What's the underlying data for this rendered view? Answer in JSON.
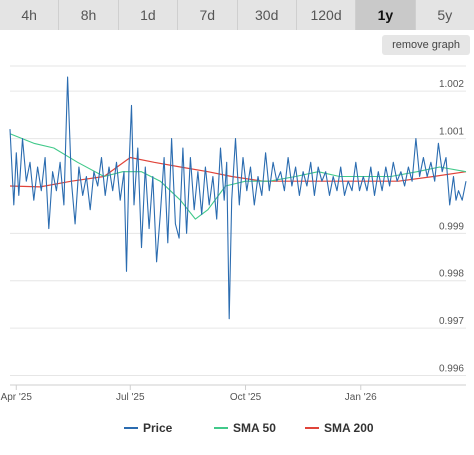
{
  "range_tabs": [
    {
      "label": "4h",
      "active": false
    },
    {
      "label": "8h",
      "active": false
    },
    {
      "label": "1d",
      "active": false
    },
    {
      "label": "7d",
      "active": false
    },
    {
      "label": "30d",
      "active": false
    },
    {
      "label": "120d",
      "active": false
    },
    {
      "label": "1y",
      "active": true
    },
    {
      "label": "5y",
      "active": false
    }
  ],
  "remove_graph_label": "remove graph",
  "chart_data": {
    "type": "line",
    "x_range": [
      "2025-03-27",
      "2026-03-26"
    ],
    "ylim": [
      0.9958,
      1.0027
    ],
    "y_ticks": [
      {
        "value": 1.002,
        "label": "1.002"
      },
      {
        "value": 1.001,
        "label": "1.001"
      },
      {
        "value": 0.999,
        "label": "0.999"
      },
      {
        "value": 0.998,
        "label": "0.998"
      },
      {
        "value": 0.997,
        "label": "0.997"
      },
      {
        "value": 0.996,
        "label": "0.996"
      }
    ],
    "x_ticks": [
      {
        "date": "2025-04-01",
        "label": "Apr '25"
      },
      {
        "date": "2025-07-01",
        "label": "Jul '25"
      },
      {
        "date": "2025-10-01",
        "label": "Oct '25"
      },
      {
        "date": "2026-01-01",
        "label": "Jan '26"
      }
    ],
    "grid": true,
    "legend_position": "bottom",
    "colors": {
      "price": "#2b6cb0",
      "sma50": "#41c98a",
      "sma200": "#e0443a"
    },
    "series": [
      {
        "name": "Price",
        "points": [
          [
            "2025-03-27",
            1.0012
          ],
          [
            "2025-03-30",
            0.9996
          ],
          [
            "2025-04-01",
            1.0007
          ],
          [
            "2025-04-03",
            0.9998
          ],
          [
            "2025-04-06",
            1.001
          ],
          [
            "2025-04-09",
            1.0001
          ],
          [
            "2025-04-12",
            1.0005
          ],
          [
            "2025-04-15",
            0.9997
          ],
          [
            "2025-04-18",
            1.0004
          ],
          [
            "2025-04-21",
            0.9999
          ],
          [
            "2025-04-24",
            1.0006
          ],
          [
            "2025-04-27",
            0.9991
          ],
          [
            "2025-04-30",
            1.0003
          ],
          [
            "2025-05-03",
            0.9999
          ],
          [
            "2025-05-06",
            1.0005
          ],
          [
            "2025-05-09",
            0.9996
          ],
          [
            "2025-05-12",
            1.0023
          ],
          [
            "2025-05-15",
            1.0001
          ],
          [
            "2025-05-18",
            0.9992
          ],
          [
            "2025-05-21",
            1.0004
          ],
          [
            "2025-05-24",
            0.9998
          ],
          [
            "2025-05-27",
            1.0002
          ],
          [
            "2025-05-30",
            0.9995
          ],
          [
            "2025-06-02",
            1.0003
          ],
          [
            "2025-06-05",
            1.0
          ],
          [
            "2025-06-08",
            1.0006
          ],
          [
            "2025-06-11",
            0.9998
          ],
          [
            "2025-06-14",
            1.0004
          ],
          [
            "2025-06-17",
            0.9999
          ],
          [
            "2025-06-20",
            1.0005
          ],
          [
            "2025-06-23",
            0.9997
          ],
          [
            "2025-06-26",
            1.0003
          ],
          [
            "2025-06-28",
            0.9982
          ],
          [
            "2025-06-30",
            1.0004
          ],
          [
            "2025-07-02",
            1.0017
          ],
          [
            "2025-07-04",
            0.9996
          ],
          [
            "2025-07-07",
            1.0008
          ],
          [
            "2025-07-10",
            0.9987
          ],
          [
            "2025-07-13",
            1.0004
          ],
          [
            "2025-07-16",
            0.9991
          ],
          [
            "2025-07-19",
            1.0002
          ],
          [
            "2025-07-22",
            0.9984
          ],
          [
            "2025-07-25",
            0.9994
          ],
          [
            "2025-07-28",
            1.0006
          ],
          [
            "2025-07-31",
            0.9988
          ],
          [
            "2025-08-03",
            1.001
          ],
          [
            "2025-08-06",
            0.9992
          ],
          [
            "2025-08-09",
            0.9989
          ],
          [
            "2025-08-12",
            1.0008
          ],
          [
            "2025-08-15",
            0.999
          ],
          [
            "2025-08-18",
            1.0006
          ],
          [
            "2025-08-21",
            0.9995
          ],
          [
            "2025-08-24",
            1.0003
          ],
          [
            "2025-08-27",
            0.9994
          ],
          [
            "2025-08-30",
            1.0004
          ],
          [
            "2025-09-02",
            0.9996
          ],
          [
            "2025-09-05",
            1.0002
          ],
          [
            "2025-09-08",
            0.9993
          ],
          [
            "2025-09-11",
            1.0008
          ],
          [
            "2025-09-14",
            0.9997
          ],
          [
            "2025-09-16",
            1.0005
          ],
          [
            "2025-09-18",
            0.9972
          ],
          [
            "2025-09-20",
            0.9997
          ],
          [
            "2025-09-23",
            1.001
          ],
          [
            "2025-09-26",
            0.9996
          ],
          [
            "2025-09-29",
            1.0006
          ],
          [
            "2025-10-02",
            0.9999
          ],
          [
            "2025-10-05",
            1.0004
          ],
          [
            "2025-10-08",
            0.9996
          ],
          [
            "2025-10-11",
            1.0002
          ],
          [
            "2025-10-14",
            0.9998
          ],
          [
            "2025-10-17",
            1.0007
          ],
          [
            "2025-10-20",
            0.9999
          ],
          [
            "2025-10-23",
            1.0005
          ],
          [
            "2025-10-26",
            1.0001
          ],
          [
            "2025-10-29",
            1.0003
          ],
          [
            "2025-11-01",
            0.9999
          ],
          [
            "2025-11-04",
            1.0006
          ],
          [
            "2025-11-07",
            1.0
          ],
          [
            "2025-11-10",
            1.0004
          ],
          [
            "2025-11-13",
            0.9998
          ],
          [
            "2025-11-16",
            1.0003
          ],
          [
            "2025-11-19",
            1.0
          ],
          [
            "2025-11-22",
            1.0005
          ],
          [
            "2025-11-25",
            0.9998
          ],
          [
            "2025-11-28",
            1.0004
          ],
          [
            "2025-12-01",
            1.0001
          ],
          [
            "2025-12-04",
            1.0003
          ],
          [
            "2025-12-07",
            0.9998
          ],
          [
            "2025-12-10",
            1.0002
          ],
          [
            "2025-12-13",
            0.9999
          ],
          [
            "2025-12-16",
            1.0004
          ],
          [
            "2025-12-19",
            0.9998
          ],
          [
            "2025-12-22",
            1.0001
          ],
          [
            "2025-12-25",
            0.9999
          ],
          [
            "2025-12-28",
            1.0005
          ],
          [
            "2025-12-31",
            0.9999
          ],
          [
            "2026-01-03",
            1.0002
          ],
          [
            "2026-01-06",
            0.9999
          ],
          [
            "2026-01-09",
            1.0004
          ],
          [
            "2026-01-12",
            0.9998
          ],
          [
            "2026-01-15",
            1.0003
          ],
          [
            "2026-01-18",
            0.9999
          ],
          [
            "2026-01-21",
            1.0004
          ],
          [
            "2026-01-24",
            1.0
          ],
          [
            "2026-01-27",
            1.0005
          ],
          [
            "2026-01-30",
            1.0001
          ],
          [
            "2026-02-02",
            1.0003
          ],
          [
            "2026-02-05",
            1.0
          ],
          [
            "2026-02-08",
            1.0004
          ],
          [
            "2026-02-11",
            1.0001
          ],
          [
            "2026-02-14",
            1.001
          ],
          [
            "2026-02-17",
            1.0002
          ],
          [
            "2026-02-20",
            1.0006
          ],
          [
            "2026-02-23",
            1.0002
          ],
          [
            "2026-02-26",
            1.0005
          ],
          [
            "2026-03-01",
            1.0001
          ],
          [
            "2026-03-04",
            1.0009
          ],
          [
            "2026-03-07",
            1.0003
          ],
          [
            "2026-03-10",
            1.0006
          ],
          [
            "2026-03-13",
            0.9996
          ],
          [
            "2026-03-16",
            1.0002
          ],
          [
            "2026-03-18",
            0.9997
          ],
          [
            "2026-03-20",
            0.9999
          ],
          [
            "2026-03-23",
            0.9997
          ],
          [
            "2026-03-26",
            1.0001
          ]
        ]
      },
      {
        "name": "SMA 50",
        "points": [
          [
            "2025-03-27",
            1.0011
          ],
          [
            "2025-04-15",
            1.0009
          ],
          [
            "2025-05-01",
            1.0008
          ],
          [
            "2025-05-20",
            1.0005
          ],
          [
            "2025-06-10",
            1.0002
          ],
          [
            "2025-06-25",
            1.0003
          ],
          [
            "2025-07-10",
            1.0003
          ],
          [
            "2025-07-25",
            1.0001
          ],
          [
            "2025-08-10",
            0.9997
          ],
          [
            "2025-08-22",
            0.9993
          ],
          [
            "2025-09-01",
            0.9995
          ],
          [
            "2025-09-15",
            1.0
          ],
          [
            "2025-10-01",
            1.0001
          ],
          [
            "2025-10-20",
            1.0001
          ],
          [
            "2025-11-10",
            1.0002
          ],
          [
            "2025-11-28",
            1.0003
          ],
          [
            "2025-12-15",
            1.0002
          ],
          [
            "2026-01-05",
            1.0002
          ],
          [
            "2026-01-25",
            1.0002
          ],
          [
            "2026-02-15",
            1.0003
          ],
          [
            "2026-03-05",
            1.0004
          ],
          [
            "2026-03-26",
            1.0003
          ]
        ]
      },
      {
        "name": "SMA 200",
        "points": [
          [
            "2025-03-27",
            1.0
          ],
          [
            "2025-04-20",
            0.99998
          ],
          [
            "2025-05-15",
            1.0001
          ],
          [
            "2025-06-10",
            1.0002
          ],
          [
            "2025-07-01",
            1.0006
          ],
          [
            "2025-07-20",
            1.0005
          ],
          [
            "2025-08-10",
            1.0004
          ],
          [
            "2025-09-01",
            1.0003
          ],
          [
            "2025-09-20",
            1.0002
          ],
          [
            "2025-10-15",
            1.0001
          ],
          [
            "2025-11-20",
            1.0001
          ],
          [
            "2025-12-31",
            1.0001
          ],
          [
            "2026-01-31",
            1.0001
          ],
          [
            "2026-02-28",
            1.0002
          ],
          [
            "2026-03-26",
            1.0003
          ]
        ]
      }
    ],
    "legend": [
      {
        "label": "Price",
        "color": "#2b6cb0"
      },
      {
        "label": "SMA 50",
        "color": "#41c98a"
      },
      {
        "label": "SMA 200",
        "color": "#e0443a"
      }
    ]
  }
}
